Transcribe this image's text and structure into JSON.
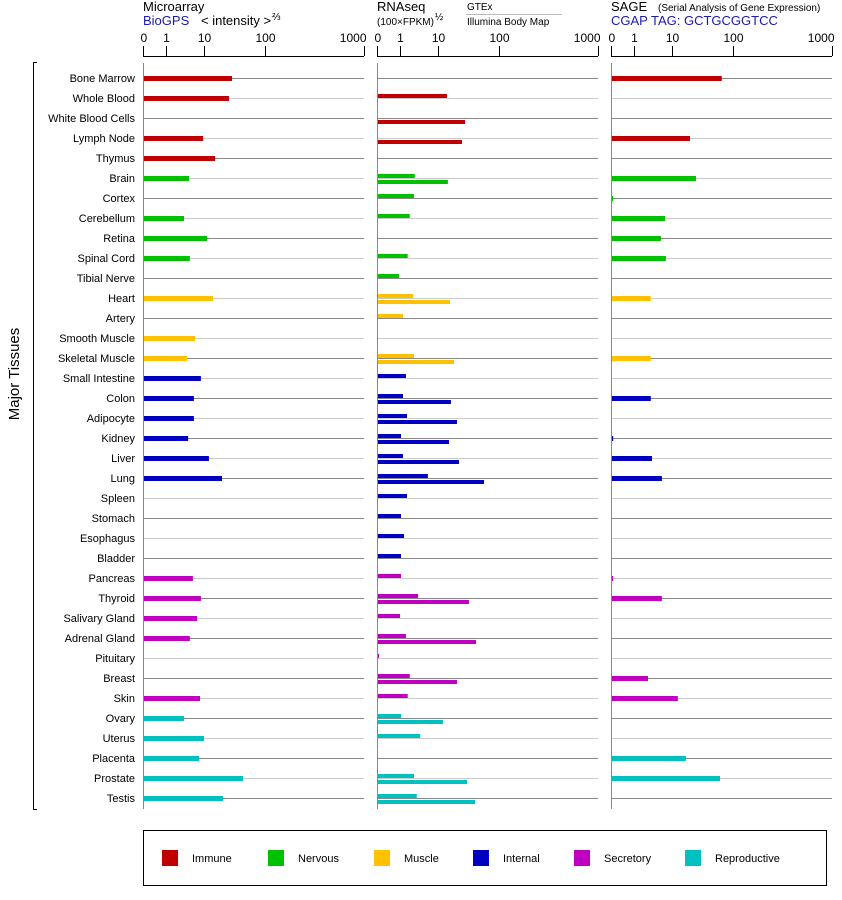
{
  "header": {
    "microarray_title": "Microarray",
    "microarray_source": "BioGPS",
    "microarray_units": "< intensity >",
    "microarray_exp": "⅔",
    "rnaseq_title": "RNAseq",
    "rnaseq_units": "(100×FPKM)",
    "rnaseq_exp": "½",
    "rnaseq_gtex": "GTEx",
    "rnaseq_illumina": "Illumina Body Map",
    "sage_title": "SAGE",
    "sage_subtitle": "(Serial Analysis of Gene Expression)",
    "sage_tag": "CGAP TAG: GCTGCGGTCC"
  },
  "ylabel": "Major Tissues",
  "colors": {
    "Immune": "#c00000",
    "Nervous": "#00c000",
    "Muscle": "#ffc000",
    "Internal": "#0000c0",
    "Secretory": "#c000c0",
    "Reproductive": "#00c0c0"
  },
  "chart_data": {
    "type": "bar",
    "orientation": "horizontal",
    "xscale_ticks": [
      0,
      1,
      10,
      100,
      1000
    ],
    "xlim": [
      0,
      1000
    ],
    "categories": [
      "Bone Marrow",
      "Whole Blood",
      "White Blood Cells",
      "Lymph Node",
      "Thymus",
      "Brain",
      "Cortex",
      "Cerebellum",
      "Retina",
      "Spinal Cord",
      "Tibial Nerve",
      "Heart",
      "Artery",
      "Smooth Muscle",
      "Skeletal Muscle",
      "Small Intestine",
      "Colon",
      "Adipocyte",
      "Kidney",
      "Liver",
      "Lung",
      "Spleen",
      "Stomach",
      "Esophagus",
      "Bladder",
      "Pancreas",
      "Thyroid",
      "Salivary Gland",
      "Adrenal Gland",
      "Pituitary",
      "Breast",
      "Skin",
      "Ovary",
      "Uterus",
      "Placenta",
      "Prostate",
      "Testis"
    ],
    "groups": [
      "Immune",
      "Immune",
      "Immune",
      "Immune",
      "Immune",
      "Nervous",
      "Nervous",
      "Nervous",
      "Nervous",
      "Nervous",
      "Nervous",
      "Muscle",
      "Muscle",
      "Muscle",
      "Muscle",
      "Internal",
      "Internal",
      "Internal",
      "Internal",
      "Internal",
      "Internal",
      "Internal",
      "Internal",
      "Internal",
      "Internal",
      "Secretory",
      "Secretory",
      "Secretory",
      "Secretory",
      "Secretory",
      "Secretory",
      "Secretory",
      "Reproductive",
      "Reproductive",
      "Reproductive",
      "Reproductive",
      "Reproductive"
    ],
    "legend": [
      "Immune",
      "Nervous",
      "Muscle",
      "Internal",
      "Secretory",
      "Reproductive"
    ],
    "legend_placement": "bottom",
    "panels": [
      {
        "name": "Microarray",
        "series": [
          {
            "name": "BioGPS",
            "values": [
              27.7,
              24.7,
              null,
              8.9,
              14.6,
              3.8,
              null,
              2.8,
              10.8,
              4.0,
              null,
              13.5,
              null,
              5.5,
              3.4,
              7.8,
              5.1,
              5.1,
              3.6,
              11.6,
              19,
              null,
              null,
              null,
              null,
              4.8,
              7.8,
              6.2,
              4.0,
              null,
              null,
              7.4,
              2.8,
              9.4,
              7.0,
              42,
              19.7
            ]
          }
        ]
      },
      {
        "name": "RNAseq",
        "series": [
          {
            "name": "GTEx",
            "values": [
              null,
              13.5,
              null,
              null,
              null,
              2.3,
              2.2,
              1.7,
              null,
              1.5,
              0.91,
              2.1,
              1.13,
              null,
              2.2,
              1.35,
              1.13,
              1.44,
              1.0,
              1.13,
              5.1,
              1.44,
              1.0,
              1.2,
              1.0,
              1.0,
              2.8,
              0.96,
              1.35,
              0.04,
              1.7,
              1.5,
              1.0,
              3.2,
              null,
              2.2,
              2.6
            ]
          },
          {
            "name": "Illumina Body Map",
            "values": [
              null,
              null,
              26.7,
              23.8,
              null,
              14,
              null,
              null,
              null,
              null,
              null,
              15.1,
              null,
              null,
              17.6,
              null,
              15.7,
              19.7,
              14.6,
              21.3,
              54.7,
              null,
              null,
              null,
              null,
              null,
              31,
              null,
              40.4,
              null,
              19.7,
              null,
              11.6,
              null,
              null,
              28.8,
              38.9
            ]
          }
        ]
      },
      {
        "name": "SAGE",
        "series": [
          {
            "name": "CGAP",
            "values": [
              63,
              null,
              null,
              19,
              null,
              23.8,
              0.05,
              6.2,
              4.8,
              6.5,
              null,
              2.6,
              null,
              null,
              2.6,
              null,
              2.6,
              null,
              0.05,
              2.8,
              5.1,
              null,
              null,
              null,
              null,
              0.05,
              5.1,
              null,
              null,
              null,
              2.2,
              12,
              null,
              null,
              16.3,
              59,
              null
            ]
          }
        ]
      }
    ]
  }
}
